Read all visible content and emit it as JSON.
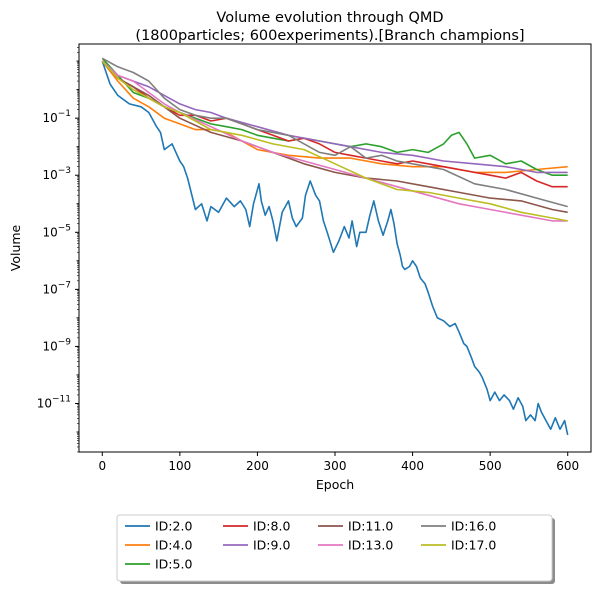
{
  "chart_data": {
    "type": "line",
    "title": "Volume evolution through QMD",
    "subtitle": "(1800particles; 600experiments).[Branch champions]",
    "xlabel": "Epoch",
    "ylabel": "Volume",
    "y_scale": "log",
    "xlim": [
      -30,
      630
    ],
    "ylim_log10": [
      -12.7,
      1.6
    ],
    "x_ticks": [
      0,
      100,
      200,
      300,
      400,
      500,
      600
    ],
    "y_tick_exponents": [
      -11,
      -9,
      -7,
      -5,
      -3,
      -1
    ],
    "grid": false,
    "legend_position": "below plot, centered, 4 columns, shadowed frame",
    "series": [
      {
        "name": "ID:2.0",
        "color": "#1f77b4",
        "points": [
          [
            0,
            1.0
          ],
          [
            10,
            0.2
          ],
          [
            20,
            -0.2
          ],
          [
            35,
            -0.5
          ],
          [
            50,
            -0.6
          ],
          [
            60,
            -0.8
          ],
          [
            70,
            -1.3
          ],
          [
            75,
            -1.5
          ],
          [
            80,
            -2.1
          ],
          [
            90,
            -1.9
          ],
          [
            100,
            -2.5
          ],
          [
            105,
            -2.7
          ],
          [
            110,
            -3.1
          ],
          [
            120,
            -4.2
          ],
          [
            128,
            -4.0
          ],
          [
            135,
            -4.6
          ],
          [
            140,
            -4.1
          ],
          [
            150,
            -4.3
          ],
          [
            160,
            -3.8
          ],
          [
            170,
            -4.1
          ],
          [
            178,
            -3.9
          ],
          [
            185,
            -4.2
          ],
          [
            190,
            -4.8
          ],
          [
            195,
            -4.0
          ],
          [
            202,
            -3.3
          ],
          [
            205,
            -3.9
          ],
          [
            210,
            -4.4
          ],
          [
            215,
            -4.1
          ],
          [
            220,
            -4.6
          ],
          [
            225,
            -5.3
          ],
          [
            232,
            -4.3
          ],
          [
            240,
            -3.9
          ],
          [
            245,
            -4.5
          ],
          [
            250,
            -4.8
          ],
          [
            258,
            -4.5
          ],
          [
            262,
            -3.7
          ],
          [
            268,
            -3.2
          ],
          [
            275,
            -3.7
          ],
          [
            280,
            -3.9
          ],
          [
            285,
            -4.6
          ],
          [
            290,
            -5.0
          ],
          [
            298,
            -5.7
          ],
          [
            305,
            -5.3
          ],
          [
            312,
            -4.8
          ],
          [
            318,
            -5.2
          ],
          [
            322,
            -4.6
          ],
          [
            328,
            -5.5
          ],
          [
            332,
            -5.0
          ],
          [
            340,
            -5.0
          ],
          [
            345,
            -4.4
          ],
          [
            350,
            -3.9
          ],
          [
            356,
            -4.6
          ],
          [
            362,
            -5.1
          ],
          [
            368,
            -4.6
          ],
          [
            372,
            -4.2
          ],
          [
            376,
            -4.7
          ],
          [
            380,
            -5.4
          ],
          [
            384,
            -5.8
          ],
          [
            387,
            -6.2
          ],
          [
            390,
            -6.3
          ],
          [
            396,
            -6.2
          ],
          [
            400,
            -6.0
          ],
          [
            405,
            -6.2
          ],
          [
            410,
            -6.6
          ],
          [
            416,
            -6.8
          ],
          [
            420,
            -7.1
          ],
          [
            426,
            -7.6
          ],
          [
            432,
            -8.0
          ],
          [
            440,
            -8.1
          ],
          [
            448,
            -8.3
          ],
          [
            455,
            -8.2
          ],
          [
            460,
            -8.5
          ],
          [
            466,
            -8.9
          ],
          [
            470,
            -9.0
          ],
          [
            476,
            -9.4
          ],
          [
            480,
            -9.7
          ],
          [
            486,
            -9.9
          ],
          [
            490,
            -10.1
          ],
          [
            496,
            -10.5
          ],
          [
            500,
            -10.9
          ],
          [
            506,
            -10.6
          ],
          [
            512,
            -10.9
          ],
          [
            518,
            -10.7
          ],
          [
            525,
            -10.9
          ],
          [
            530,
            -11.2
          ],
          [
            536,
            -10.8
          ],
          [
            542,
            -11.1
          ],
          [
            546,
            -11.6
          ],
          [
            552,
            -11.4
          ],
          [
            558,
            -11.6
          ],
          [
            562,
            -11.0
          ],
          [
            566,
            -11.3
          ],
          [
            572,
            -11.6
          ],
          [
            578,
            -11.9
          ],
          [
            584,
            -11.5
          ],
          [
            590,
            -11.9
          ],
          [
            596,
            -11.6
          ],
          [
            600,
            -12.1
          ]
        ]
      },
      {
        "name": "ID:4.0",
        "color": "#ff7f0e",
        "points": [
          [
            0,
            1.0
          ],
          [
            20,
            0.3
          ],
          [
            40,
            -0.3
          ],
          [
            60,
            -0.6
          ],
          [
            80,
            -1.0
          ],
          [
            100,
            -1.2
          ],
          [
            120,
            -1.4
          ],
          [
            140,
            -1.4
          ],
          [
            160,
            -1.5
          ],
          [
            200,
            -2.1
          ],
          [
            240,
            -2.3
          ],
          [
            280,
            -2.4
          ],
          [
            320,
            -2.4
          ],
          [
            360,
            -2.6
          ],
          [
            400,
            -2.7
          ],
          [
            440,
            -2.7
          ],
          [
            480,
            -2.9
          ],
          [
            520,
            -2.9
          ],
          [
            560,
            -2.8
          ],
          [
            600,
            -2.7
          ]
        ]
      },
      {
        "name": "ID:5.0",
        "color": "#2ca02c",
        "points": [
          [
            0,
            1.1
          ],
          [
            20,
            0.5
          ],
          [
            40,
            -0.1
          ],
          [
            60,
            -0.3
          ],
          [
            80,
            -0.6
          ],
          [
            100,
            -0.8
          ],
          [
            120,
            -1.0
          ],
          [
            140,
            -1.2
          ],
          [
            160,
            -1.3
          ],
          [
            180,
            -1.4
          ],
          [
            200,
            -1.6
          ],
          [
            220,
            -1.7
          ],
          [
            240,
            -1.8
          ],
          [
            260,
            -1.7
          ],
          [
            280,
            -1.8
          ],
          [
            300,
            -1.9
          ],
          [
            320,
            -2.0
          ],
          [
            340,
            -1.9
          ],
          [
            360,
            -2.0
          ],
          [
            380,
            -2.2
          ],
          [
            400,
            -2.1
          ],
          [
            420,
            -2.2
          ],
          [
            440,
            -1.9
          ],
          [
            450,
            -1.6
          ],
          [
            460,
            -1.5
          ],
          [
            470,
            -1.9
          ],
          [
            480,
            -2.4
          ],
          [
            500,
            -2.3
          ],
          [
            520,
            -2.6
          ],
          [
            540,
            -2.5
          ],
          [
            560,
            -2.8
          ],
          [
            580,
            -3.0
          ],
          [
            600,
            -3.0
          ]
        ]
      },
      {
        "name": "ID:8.0",
        "color": "#d62728",
        "points": [
          [
            0,
            1.0
          ],
          [
            20,
            0.4
          ],
          [
            40,
            0.1
          ],
          [
            60,
            -0.3
          ],
          [
            80,
            -0.6
          ],
          [
            100,
            -0.9
          ],
          [
            120,
            -0.9
          ],
          [
            140,
            -1.1
          ],
          [
            160,
            -1.0
          ],
          [
            180,
            -1.2
          ],
          [
            200,
            -1.4
          ],
          [
            220,
            -1.6
          ],
          [
            240,
            -1.8
          ],
          [
            260,
            -1.7
          ],
          [
            280,
            -1.9
          ],
          [
            300,
            -2.2
          ],
          [
            320,
            -2.3
          ],
          [
            340,
            -2.4
          ],
          [
            360,
            -2.5
          ],
          [
            380,
            -2.6
          ],
          [
            400,
            -2.5
          ],
          [
            420,
            -2.6
          ],
          [
            440,
            -2.7
          ],
          [
            460,
            -2.8
          ],
          [
            480,
            -2.9
          ],
          [
            500,
            -3.0
          ],
          [
            520,
            -3.1
          ],
          [
            540,
            -2.9
          ],
          [
            560,
            -3.2
          ],
          [
            580,
            -3.4
          ],
          [
            600,
            -3.4
          ]
        ]
      },
      {
        "name": "ID:9.0",
        "color": "#9467bd",
        "points": [
          [
            0,
            1.0
          ],
          [
            20,
            0.5
          ],
          [
            40,
            0.3
          ],
          [
            60,
            0.1
          ],
          [
            80,
            -0.2
          ],
          [
            100,
            -0.5
          ],
          [
            120,
            -0.7
          ],
          [
            140,
            -0.8
          ],
          [
            160,
            -1.0
          ],
          [
            200,
            -1.3
          ],
          [
            240,
            -1.6
          ],
          [
            280,
            -1.8
          ],
          [
            320,
            -2.0
          ],
          [
            360,
            -2.2
          ],
          [
            400,
            -2.3
          ],
          [
            440,
            -2.5
          ],
          [
            480,
            -2.6
          ],
          [
            520,
            -2.7
          ],
          [
            560,
            -2.9
          ],
          [
            600,
            -2.9
          ]
        ]
      },
      {
        "name": "ID:11.0",
        "color": "#8c564b",
        "points": [
          [
            0,
            1.0
          ],
          [
            20,
            0.4
          ],
          [
            40,
            0.1
          ],
          [
            60,
            -0.2
          ],
          [
            80,
            -0.6
          ],
          [
            100,
            -1.0
          ],
          [
            140,
            -1.5
          ],
          [
            180,
            -1.8
          ],
          [
            220,
            -2.2
          ],
          [
            260,
            -2.6
          ],
          [
            300,
            -2.9
          ],
          [
            340,
            -3.1
          ],
          [
            380,
            -3.2
          ],
          [
            420,
            -3.4
          ],
          [
            460,
            -3.6
          ],
          [
            500,
            -3.8
          ],
          [
            540,
            -3.9
          ],
          [
            580,
            -4.2
          ],
          [
            600,
            -4.3
          ]
        ]
      },
      {
        "name": "ID:13.0",
        "color": "#e377c2",
        "points": [
          [
            0,
            1.0
          ],
          [
            20,
            0.5
          ],
          [
            40,
            0.3
          ],
          [
            60,
            -0.1
          ],
          [
            80,
            -0.5
          ],
          [
            100,
            -0.8
          ],
          [
            140,
            -1.3
          ],
          [
            180,
            -1.8
          ],
          [
            220,
            -2.2
          ],
          [
            260,
            -2.5
          ],
          [
            300,
            -2.8
          ],
          [
            340,
            -3.1
          ],
          [
            380,
            -3.4
          ],
          [
            420,
            -3.7
          ],
          [
            460,
            -4.0
          ],
          [
            500,
            -4.2
          ],
          [
            540,
            -4.4
          ],
          [
            580,
            -4.6
          ],
          [
            600,
            -4.6
          ]
        ]
      },
      {
        "name": "ID:16.0",
        "color": "#7f7f7f",
        "points": [
          [
            0,
            1.1
          ],
          [
            20,
            0.8
          ],
          [
            40,
            0.6
          ],
          [
            60,
            0.3
          ],
          [
            80,
            -0.3
          ],
          [
            100,
            -0.7
          ],
          [
            120,
            -0.9
          ],
          [
            140,
            -1.0
          ],
          [
            160,
            -1.0
          ],
          [
            180,
            -1.2
          ],
          [
            200,
            -1.4
          ],
          [
            240,
            -1.6
          ],
          [
            280,
            -2.2
          ],
          [
            300,
            -2.3
          ],
          [
            320,
            -2.0
          ],
          [
            340,
            -2.4
          ],
          [
            360,
            -2.3
          ],
          [
            380,
            -2.5
          ],
          [
            400,
            -2.6
          ],
          [
            440,
            -2.8
          ],
          [
            480,
            -3.3
          ],
          [
            520,
            -3.5
          ],
          [
            560,
            -3.8
          ],
          [
            600,
            -4.1
          ]
        ]
      },
      {
        "name": "ID:17.0",
        "color": "#bcbd22",
        "points": [
          [
            0,
            1.0
          ],
          [
            20,
            0.4
          ],
          [
            40,
            0.0
          ],
          [
            60,
            -0.3
          ],
          [
            80,
            -0.6
          ],
          [
            100,
            -0.8
          ],
          [
            140,
            -1.4
          ],
          [
            180,
            -1.6
          ],
          [
            220,
            -1.9
          ],
          [
            260,
            -2.1
          ],
          [
            300,
            -2.6
          ],
          [
            340,
            -3.1
          ],
          [
            380,
            -3.5
          ],
          [
            420,
            -3.6
          ],
          [
            460,
            -3.8
          ],
          [
            500,
            -4.0
          ],
          [
            540,
            -4.3
          ],
          [
            580,
            -4.5
          ],
          [
            600,
            -4.6
          ]
        ]
      }
    ]
  }
}
